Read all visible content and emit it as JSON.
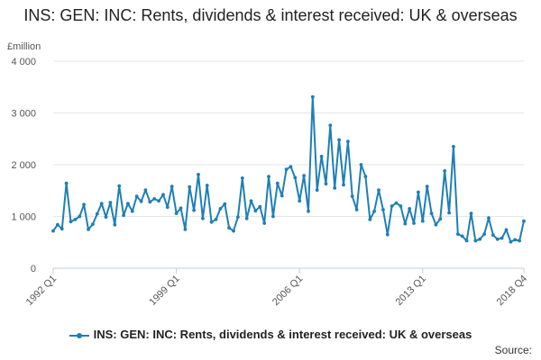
{
  "chart_data": {
    "type": "line",
    "title": "INS: GEN: INC: Rents, dividends & interest received: UK & overseas",
    "ylabel": "£million",
    "ylim": [
      0,
      4000
    ],
    "yticks": [
      0,
      1000,
      2000,
      3000,
      4000
    ],
    "ytick_labels": [
      "0",
      "1 000",
      "2 000",
      "3 000",
      "4 000"
    ],
    "xtick_labels": [
      "1992 Q1",
      "1999 Q1",
      "2006 Q1",
      "2013 Q1",
      "2018 Q4"
    ],
    "xtick_indices": [
      0,
      28,
      56,
      84,
      107
    ],
    "grid": true,
    "legend_position": "bottom",
    "series": [
      {
        "name": "INS: GEN: INC: Rents, dividends & interest received: UK & overseas",
        "color": "#1f7fb6",
        "x_start": "1992 Q1",
        "x_end": "2018 Q4",
        "values": [
          720,
          840,
          760,
          1640,
          900,
          940,
          1000,
          1230,
          750,
          850,
          1050,
          1250,
          990,
          1270,
          840,
          1590,
          1020,
          1250,
          1100,
          1390,
          1290,
          1510,
          1280,
          1340,
          1300,
          1420,
          1180,
          1580,
          1060,
          1160,
          750,
          1570,
          1120,
          1810,
          960,
          1600,
          890,
          940,
          1150,
          1240,
          780,
          720,
          990,
          1740,
          960,
          1300,
          1110,
          1190,
          870,
          1770,
          1000,
          1640,
          1400,
          1910,
          1960,
          1750,
          1300,
          1790,
          1100,
          3310,
          1510,
          2160,
          1630,
          2760,
          1550,
          2480,
          1610,
          2450,
          1390,
          1130,
          2000,
          1770,
          940,
          1100,
          1510,
          1130,
          650,
          1200,
          1260,
          1200,
          860,
          1150,
          870,
          1470,
          910,
          1580,
          1060,
          840,
          950,
          1880,
          1070,
          2350,
          660,
          620,
          530,
          1060,
          530,
          560,
          660,
          970,
          640,
          560,
          580,
          740,
          510,
          550,
          530,
          910
        ]
      }
    ]
  },
  "legend": {
    "label": "INS: GEN: INC: Rents, dividends & interest received: UK & overseas"
  },
  "source": {
    "label": "Source:"
  }
}
